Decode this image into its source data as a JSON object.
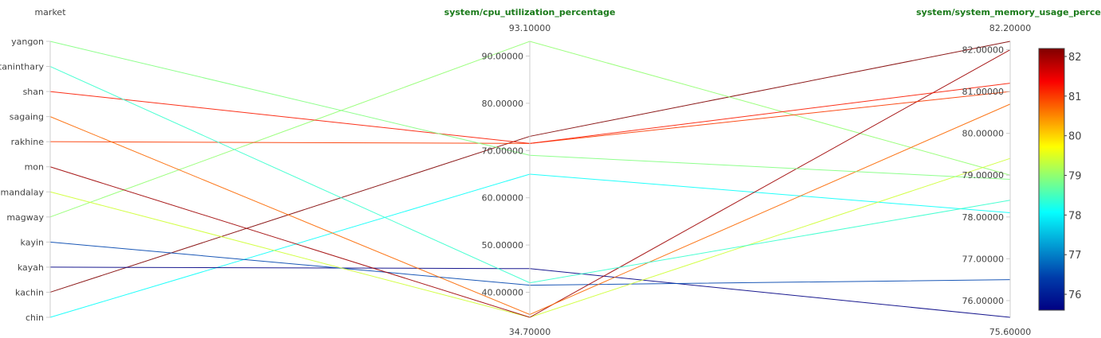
{
  "chart_data": {
    "type": "parallel_coordinates",
    "colorscale": "Jet",
    "color_range": [
      75.6,
      82.2
    ],
    "colorbar_ticks": [
      "82",
      "81",
      "80",
      "79",
      "78",
      "77",
      "76"
    ],
    "axes": [
      {
        "title": "market",
        "kind": "categorical",
        "categories": [
          "chin",
          "kachin",
          "kayah",
          "kayin",
          "magway",
          "mandalay",
          "mon",
          "rakhine",
          "sagaing",
          "shan",
          "taninthary",
          "yangon"
        ]
      },
      {
        "title": "system/cpu_utilization_percentage",
        "kind": "numeric",
        "range": [
          34.7,
          93.1
        ],
        "range_labels": [
          "93.10000",
          "34.70000"
        ],
        "ticks": [
          40,
          50,
          60,
          70,
          80,
          90
        ],
        "tick_labels": [
          "40.00000",
          "50.00000",
          "60.00000",
          "70.00000",
          "80.00000",
          "90.00000"
        ]
      },
      {
        "title": "system/system_memory_usage_percentag",
        "kind": "numeric",
        "range": [
          75.6,
          82.2
        ],
        "range_labels": [
          "82.20000",
          "75.60000"
        ],
        "ticks": [
          76,
          77,
          78,
          79,
          80,
          81,
          82
        ],
        "tick_labels": [
          "76.00000",
          "77.00000",
          "78.00000",
          "79.00000",
          "80.00000",
          "81.00000",
          "82.00000"
        ]
      }
    ],
    "records": [
      {
        "market": "chin",
        "cpu": 65.0,
        "memory": 78.1
      },
      {
        "market": "kachin",
        "cpu": 73.0,
        "memory": 82.2
      },
      {
        "market": "kayah",
        "cpu": 45.0,
        "memory": 75.6
      },
      {
        "market": "kayin",
        "cpu": 41.5,
        "memory": 76.5
      },
      {
        "market": "magway",
        "cpu": 93.1,
        "memory": 79.0
      },
      {
        "market": "mandalay",
        "cpu": 34.7,
        "memory": 79.4
      },
      {
        "market": "mon",
        "cpu": 34.7,
        "memory": 82.0
      },
      {
        "market": "rakhine",
        "cpu": 71.5,
        "memory": 81.0
      },
      {
        "market": "sagaing",
        "cpu": 35.3,
        "memory": 80.7
      },
      {
        "market": "shan",
        "cpu": 71.5,
        "memory": 81.2
      },
      {
        "market": "taninthary",
        "cpu": 42.0,
        "memory": 78.4
      },
      {
        "market": "yangon",
        "cpu": 69.0,
        "memory": 78.9
      }
    ]
  }
}
